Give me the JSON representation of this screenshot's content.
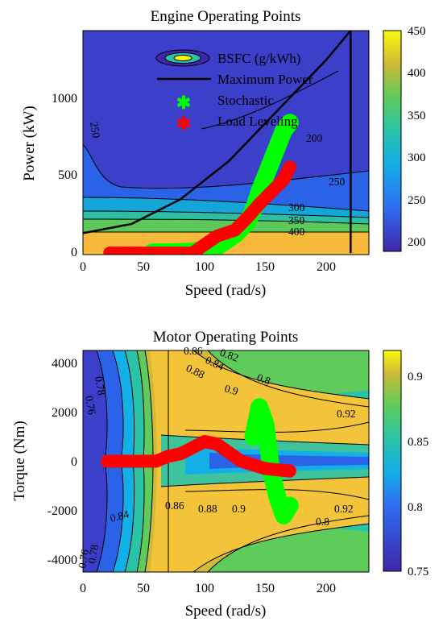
{
  "chart_data": [
    {
      "type": "contour",
      "title": "Engine Operating Points",
      "xlabel": "Speed (rad/s)",
      "ylabel": "Power (kW)",
      "xlim": [
        0,
        235
      ],
      "ylim": [
        -10,
        1450
      ],
      "xticks": [
        "0",
        "50",
        "100",
        "150",
        "200"
      ],
      "yticks": [
        "0",
        "500",
        "1000"
      ],
      "colorbar": {
        "min": 190,
        "max": 450,
        "ticks": [
          "450",
          "400",
          "350",
          "300",
          "250",
          "200"
        ]
      },
      "contour_labels": [
        "250",
        "200",
        "250",
        "300",
        "350",
        "400"
      ],
      "legend": {
        "position": "top-right",
        "entries": [
          "BSFC (g/kWh)",
          "Maximum Power",
          "Stochastic",
          "Load Leveling"
        ]
      },
      "series": [
        {
          "name": "Maximum Power",
          "color": "#000000",
          "x": [
            0,
            40,
            80,
            120,
            160,
            200,
            220,
            220
          ],
          "y": [
            130,
            190,
            350,
            600,
            930,
            1260,
            1450,
            0
          ]
        },
        {
          "name": "Stochastic",
          "color": "#00ff00",
          "x": [
            57,
            70,
            90,
            110,
            125,
            135,
            140,
            145,
            150,
            155,
            160,
            165,
            170
          ],
          "y": [
            5,
            5,
            10,
            40,
            120,
            200,
            280,
            400,
            500,
            600,
            700,
            800,
            850
          ]
        },
        {
          "name": "Load Leveling",
          "color": "#ff0000",
          "x": [
            22,
            32,
            40,
            55,
            70,
            90,
            110,
            125,
            135,
            145,
            155,
            165,
            170
          ],
          "y": [
            0,
            0,
            0,
            0,
            0,
            0,
            110,
            150,
            230,
            320,
            400,
            480,
            560
          ]
        }
      ]
    },
    {
      "type": "contour",
      "title": "Motor Operating Points",
      "xlabel": "Speed (rad/s)",
      "ylabel": "Torque (Nm)",
      "xlim": [
        0,
        235
      ],
      "ylim": [
        -4500,
        4500
      ],
      "xticks": [
        "0",
        "50",
        "100",
        "150",
        "200"
      ],
      "yticks": [
        "4000",
        "2000",
        "0",
        "-2000",
        "-4000"
      ],
      "colorbar": {
        "min": 0.75,
        "max": 0.92,
        "ticks": [
          "0.9",
          "0.85",
          "0.8",
          "0.75"
        ]
      },
      "contour_labels": [
        "0.86",
        "0.82",
        "0.84",
        "0.88",
        "0.8",
        "0.9",
        "0.92",
        "0.78",
        "0.76",
        "0.84",
        "0.86",
        "0.88",
        "0.9",
        "0.92",
        "0.8",
        "0.78",
        "0.76"
      ],
      "series": [
        {
          "name": "Stochastic",
          "color": "#00ff00",
          "x": [
            140,
            145,
            150,
            155,
            160,
            165,
            170
          ],
          "y": [
            1000,
            2200,
            1500,
            -500,
            -1500,
            -2200,
            -1800
          ]
        },
        {
          "name": "Load Leveling",
          "color": "#ff0000",
          "x": [
            20,
            25,
            35,
            45,
            60,
            70,
            80,
            100,
            110,
            130,
            150,
            170
          ],
          "y": [
            0,
            0,
            0,
            0,
            0,
            200,
            300,
            800,
            700,
            0,
            -300,
            -400
          ]
        }
      ]
    }
  ]
}
